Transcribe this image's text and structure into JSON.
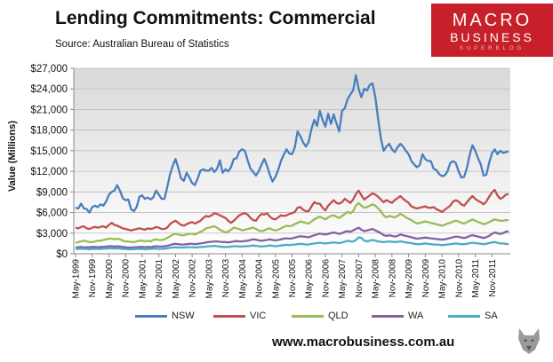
{
  "header": {
    "title": "Lending Commitments: Commercial",
    "source": "Source:  Australian Bureau of Statistics"
  },
  "logo": {
    "line1": "MACRO",
    "line2": "BUSINESS",
    "line3": "SUPERBLOG"
  },
  "footer": {
    "url": "www.macrobusiness.com.au"
  },
  "colors": {
    "NSW": "#4a7ebf",
    "VIC": "#c0504d",
    "QLD": "#9bbb59",
    "WA": "#8064a2",
    "SA": "#4bacc6",
    "plot_bg_top": "#d9d9d9",
    "plot_bg_bottom": "#ffffff"
  },
  "chart_data": {
    "type": "line",
    "ylabel": "Value (Millions)",
    "xlabel": "",
    "ylim": [
      0,
      27000
    ],
    "yticks": [
      0,
      3000,
      6000,
      9000,
      12000,
      15000,
      18000,
      21000,
      24000,
      27000
    ],
    "ytick_labels": [
      "$0",
      "$3,000",
      "$6,000",
      "$9,000",
      "$12,000",
      "$15,000",
      "$18,000",
      "$21,000",
      "$24,000",
      "$27,000"
    ],
    "xtick_labels": [
      "May-1999",
      "Nov-1999",
      "May-2000",
      "Nov-2000",
      "May-2001",
      "Nov-2001",
      "May-2002",
      "Nov-2002",
      "May-2003",
      "Nov-2003",
      "May-2004",
      "Nov-2004",
      "May-2005",
      "Nov-2005",
      "May-2006",
      "Nov-2006",
      "May-2007",
      "Nov-2007",
      "May-2008",
      "Nov-2008",
      "May-2009",
      "Nov-2009",
      "May-2010",
      "Nov-2010",
      "May-2011",
      "Nov-2011"
    ],
    "x_start": "May-1999",
    "x_end": "Dec-2011",
    "legend_position": "bottom",
    "series": [
      {
        "name": "NSW",
        "values": [
          6700,
          6600,
          7300,
          6600,
          6500,
          6000,
          6800,
          7000,
          6800,
          7200,
          7000,
          7600,
          8600,
          9000,
          9200,
          10000,
          9200,
          8100,
          7800,
          7900,
          6500,
          6200,
          6800,
          8300,
          8500,
          8000,
          8200,
          7900,
          8200,
          9200,
          8600,
          8000,
          8000,
          9600,
          11500,
          12800,
          13800,
          12500,
          11000,
          10600,
          11800,
          11100,
          10300,
          10000,
          11000,
          12100,
          12300,
          12100,
          12100,
          12500,
          11900,
          12400,
          13600,
          11800,
          12300,
          12000,
          12600,
          13800,
          13900,
          14900,
          15200,
          15000,
          13600,
          12400,
          11900,
          11400,
          12000,
          13000,
          13800,
          12800,
          11500,
          10500,
          11200,
          12200,
          13500,
          14400,
          15200,
          14600,
          14500,
          15500,
          17800,
          17100,
          16200,
          15600,
          16300,
          18200,
          19500,
          18600,
          20800,
          19500,
          18500,
          20400,
          18900,
          20300,
          19000,
          17800,
          20800,
          21200,
          22500,
          23200,
          23800,
          26000,
          24000,
          22800,
          24000,
          23800,
          24600,
          24800,
          22800,
          19600,
          16800,
          15000,
          15600,
          16000,
          15200,
          14800,
          15500,
          16000,
          15600,
          15000,
          14500,
          13500,
          13000,
          12600,
          12900,
          14500,
          13800,
          13500,
          13500,
          12400,
          12200,
          11600,
          11300,
          11400,
          12000,
          13200,
          13500,
          13200,
          12000,
          11100,
          11200,
          12500,
          14400,
          15800,
          15000,
          13900,
          13000,
          11400,
          11500,
          13200,
          14600,
          15200,
          14500,
          15000,
          14700,
          14800,
          14900
        ]
      },
      {
        "name": "VIC",
        "values": [
          3800,
          3700,
          3900,
          4000,
          3700,
          3600,
          3800,
          3900,
          3800,
          3900,
          4000,
          3800,
          4200,
          4500,
          4200,
          4100,
          3900,
          3700,
          3600,
          3500,
          3400,
          3500,
          3600,
          3700,
          3600,
          3500,
          3700,
          3600,
          3700,
          3900,
          3800,
          3600,
          3600,
          3800,
          4300,
          4600,
          4800,
          4500,
          4200,
          4100,
          4300,
          4500,
          4600,
          4400,
          4600,
          4800,
          5200,
          5500,
          5400,
          5600,
          5900,
          5800,
          5600,
          5400,
          5200,
          4800,
          4500,
          4800,
          5200,
          5600,
          5800,
          5900,
          5700,
          5200,
          4900,
          4800,
          5400,
          5800,
          5700,
          5900,
          5400,
          5100,
          5000,
          5300,
          5600,
          5500,
          5600,
          5800,
          5900,
          6100,
          6700,
          6800,
          6400,
          6200,
          6200,
          6900,
          7500,
          7300,
          7300,
          6700,
          6300,
          7000,
          7400,
          7800,
          7400,
          7300,
          7500,
          8000,
          7700,
          7400,
          7900,
          8700,
          9200,
          8500,
          7900,
          8200,
          8500,
          8800,
          8600,
          8300,
          7900,
          7500,
          7800,
          7600,
          7400,
          7800,
          8100,
          8400,
          8000,
          7700,
          7400,
          6900,
          6700,
          6600,
          6700,
          6800,
          6900,
          6700,
          6700,
          6800,
          6500,
          6300,
          6100,
          6400,
          6700,
          7000,
          7600,
          7800,
          7600,
          7200,
          7000,
          7500,
          8000,
          8400,
          8000,
          7700,
          7500,
          7200,
          7600,
          8300,
          8900,
          9300,
          8500,
          8000,
          8200,
          8600,
          8700
        ]
      },
      {
        "name": "QLD",
        "values": [
          1600,
          1700,
          1800,
          1900,
          1800,
          1700,
          1700,
          1800,
          1900,
          1900,
          2000,
          2100,
          2200,
          2200,
          2100,
          2200,
          2100,
          1900,
          1800,
          1800,
          1700,
          1700,
          1800,
          1900,
          1900,
          1800,
          1900,
          1800,
          2000,
          2100,
          2000,
          2000,
          2100,
          2300,
          2500,
          2800,
          2900,
          2800,
          2700,
          2700,
          2800,
          2900,
          2900,
          2800,
          3000,
          3200,
          3400,
          3700,
          3800,
          3900,
          4000,
          3800,
          3500,
          3300,
          3100,
          3200,
          3500,
          3800,
          3700,
          3600,
          3400,
          3500,
          3600,
          3700,
          3800,
          3600,
          3400,
          3300,
          3400,
          3600,
          3700,
          3500,
          3400,
          3500,
          3700,
          3900,
          4100,
          4000,
          4100,
          4300,
          4500,
          4700,
          4600,
          4500,
          4400,
          4700,
          5000,
          5200,
          5400,
          5200,
          5000,
          5300,
          5500,
          5600,
          5400,
          5200,
          5500,
          5800,
          6100,
          5900,
          6200,
          7000,
          7400,
          7000,
          6700,
          6800,
          7000,
          7200,
          7000,
          6600,
          6200,
          5600,
          5300,
          5500,
          5400,
          5300,
          5500,
          5800,
          5600,
          5300,
          5100,
          4900,
          4600,
          4400,
          4500,
          4600,
          4700,
          4600,
          4500,
          4400,
          4300,
          4200,
          4100,
          4200,
          4400,
          4500,
          4700,
          4800,
          4700,
          4500,
          4400,
          4600,
          4800,
          5000,
          4800,
          4600,
          4500,
          4300,
          4400,
          4600,
          4800,
          5000,
          4900,
          4800,
          4800,
          4900,
          4900
        ]
      },
      {
        "name": "WA",
        "values": [
          900,
          950,
          1000,
          900,
          950,
          950,
          1000,
          1000,
          950,
          1000,
          1000,
          1050,
          1100,
          1100,
          1050,
          1100,
          1050,
          1000,
          950,
          900,
          900,
          950,
          950,
          1000,
          1000,
          950,
          1000,
          950,
          1050,
          1100,
          1050,
          1050,
          1100,
          1150,
          1250,
          1400,
          1450,
          1400,
          1350,
          1350,
          1400,
          1450,
          1450,
          1400,
          1450,
          1500,
          1550,
          1650,
          1700,
          1750,
          1800,
          1800,
          1750,
          1700,
          1700,
          1650,
          1700,
          1800,
          1850,
          1800,
          1800,
          1850,
          1900,
          2000,
          2100,
          2050,
          1950,
          1900,
          1950,
          2000,
          2100,
          2000,
          1950,
          2000,
          2100,
          2200,
          2250,
          2200,
          2250,
          2350,
          2450,
          2550,
          2500,
          2450,
          2400,
          2550,
          2700,
          2800,
          2950,
          2850,
          2800,
          2900,
          3000,
          3100,
          3000,
          2900,
          3000,
          3200,
          3300,
          3200,
          3400,
          3600,
          3800,
          3500,
          3300,
          3400,
          3500,
          3600,
          3400,
          3200,
          3000,
          2700,
          2600,
          2700,
          2600,
          2500,
          2600,
          2800,
          2700,
          2600,
          2500,
          2400,
          2300,
          2200,
          2250,
          2300,
          2350,
          2300,
          2250,
          2200,
          2150,
          2100,
          2050,
          2100,
          2200,
          2300,
          2400,
          2500,
          2450,
          2350,
          2300,
          2400,
          2600,
          2700,
          2600,
          2500,
          2400,
          2300,
          2400,
          2600,
          2900,
          3100,
          3000,
          2900,
          3000,
          3200,
          3300
        ]
      },
      {
        "name": "SA",
        "values": [
          700,
          700,
          750,
          700,
          700,
          650,
          700,
          700,
          700,
          700,
          750,
          750,
          800,
          800,
          750,
          800,
          750,
          700,
          700,
          650,
          650,
          650,
          700,
          700,
          700,
          650,
          700,
          700,
          750,
          750,
          700,
          700,
          750,
          800,
          850,
          900,
          950,
          900,
          900,
          900,
          950,
          950,
          950,
          900,
          950,
          1000,
          1000,
          1050,
          1100,
          1100,
          1150,
          1100,
          1050,
          1000,
          1000,
          1000,
          1050,
          1100,
          1100,
          1050,
          1050,
          1100,
          1100,
          1150,
          1200,
          1150,
          1100,
          1050,
          1100,
          1150,
          1200,
          1150,
          1100,
          1150,
          1200,
          1250,
          1300,
          1250,
          1300,
          1350,
          1400,
          1450,
          1400,
          1350,
          1350,
          1450,
          1500,
          1550,
          1600,
          1550,
          1500,
          1550,
          1600,
          1650,
          1600,
          1550,
          1650,
          1750,
          1900,
          1800,
          1800,
          2000,
          2400,
          2300,
          1900,
          1800,
          1900,
          2000,
          1900,
          1800,
          1750,
          1700,
          1750,
          1800,
          1750,
          1700,
          1750,
          1800,
          1750,
          1650,
          1600,
          1550,
          1450,
          1400,
          1400,
          1450,
          1500,
          1450,
          1400,
          1350,
          1350,
          1300,
          1250,
          1300,
          1350,
          1400,
          1450,
          1500,
          1450,
          1400,
          1400,
          1450,
          1550,
          1600,
          1550,
          1500,
          1450,
          1400,
          1450,
          1550,
          1650,
          1700,
          1600,
          1500,
          1500,
          1450,
          1400
        ]
      }
    ]
  }
}
